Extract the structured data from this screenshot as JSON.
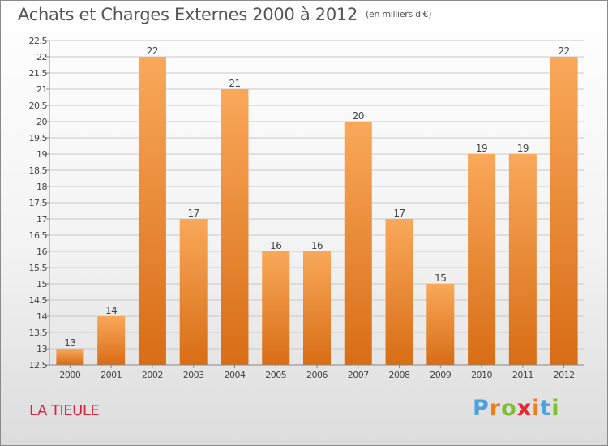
{
  "title": "Achats et Charges Externes 2000 à 2012",
  "unit_note": "(en milliers d'€)",
  "commune": "LA TIEULE",
  "brand": {
    "text": "Proxiti",
    "letter_colors": [
      "#4aa3df",
      "#f07d1a",
      "#7dbf2f",
      "#e8262d",
      "#f07d1a",
      "#4aa3df",
      "#7dbf2f"
    ]
  },
  "colors": {
    "bar_top": "#f9a85a",
    "bar_bottom": "#d86d15",
    "grid": "#c8c8c8",
    "text": "#444444"
  },
  "chart_data": {
    "type": "bar",
    "categories": [
      "2000",
      "2001",
      "2002",
      "2003",
      "2004",
      "2005",
      "2006",
      "2007",
      "2008",
      "2009",
      "2010",
      "2011",
      "2012"
    ],
    "values": [
      13,
      14,
      22,
      17,
      21,
      16,
      16,
      20,
      17,
      15,
      19,
      19,
      22
    ],
    "ylim": [
      12.5,
      22.5
    ],
    "yticks": [
      "12.5",
      "13",
      "13.5",
      "14",
      "14.5",
      "15",
      "15.5",
      "16",
      "16.5",
      "17",
      "17.5",
      "18",
      "18.5",
      "19",
      "19.5",
      "20",
      "20.5",
      "21",
      "21.5",
      "22",
      "22.5"
    ],
    "grid": true,
    "data_labels": true
  }
}
